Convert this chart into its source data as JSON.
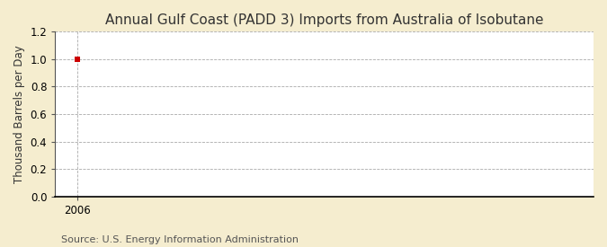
{
  "title": "Annual Gulf Coast (PADD 3) Imports from Australia of Isobutane",
  "ylabel": "Thousand Barrels per Day",
  "source": "Source: U.S. Energy Information Administration",
  "x_data": [
    2006
  ],
  "y_data": [
    1.0
  ],
  "point_color": "#cc0000",
  "xlim": [
    2005.3,
    2022
  ],
  "ylim": [
    0.0,
    1.2
  ],
  "yticks": [
    0.0,
    0.2,
    0.4,
    0.6,
    0.8,
    1.0,
    1.2
  ],
  "xticks": [
    2006
  ],
  "figure_bg_color": "#f5edcf",
  "plot_bg_color": "#ffffff",
  "grid_color": "#aaaaaa",
  "spine_color": "#555555",
  "title_fontsize": 11,
  "label_fontsize": 8.5,
  "tick_fontsize": 8.5,
  "source_fontsize": 8
}
